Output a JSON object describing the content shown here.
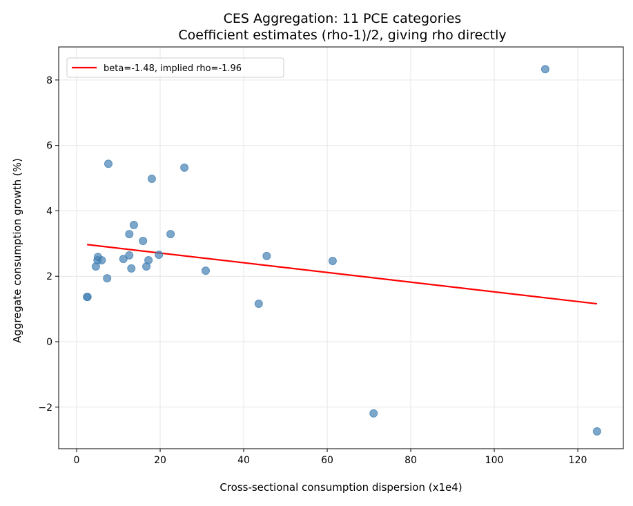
{
  "chart_data": {
    "type": "scatter",
    "title": "CES Aggregation: 11 PCE categories",
    "subtitle": "Coefficient estimates (rho-1)/2, giving rho directly",
    "xlabel": "Cross-sectional consumption dispersion (x1e4)",
    "ylabel": "Aggregate consumption growth (%)",
    "xlim": [
      -4.3,
      130.9
    ],
    "ylim": [
      -3.27,
      9.01
    ],
    "xticks": [
      0,
      20,
      40,
      60,
      80,
      100,
      120
    ],
    "xtick_labels": [
      "0",
      "20",
      "40",
      "60",
      "80",
      "100",
      "120"
    ],
    "yticks": [
      -2,
      0,
      2,
      4,
      6,
      8
    ],
    "ytick_labels": [
      "−2",
      "0",
      "2",
      "4",
      "6",
      "8"
    ],
    "grid": true,
    "legend_placement": "top-left",
    "points": [
      [
        2.5,
        1.37
      ],
      [
        2.6,
        1.37
      ],
      [
        4.6,
        2.3
      ],
      [
        5.1,
        2.59
      ],
      [
        5.0,
        2.49
      ],
      [
        6.0,
        2.49
      ],
      [
        7.3,
        1.94
      ],
      [
        7.6,
        5.44
      ],
      [
        11.2,
        2.53
      ],
      [
        12.6,
        3.29
      ],
      [
        12.6,
        2.64
      ],
      [
        13.1,
        2.24
      ],
      [
        13.7,
        3.57
      ],
      [
        15.9,
        3.08
      ],
      [
        16.7,
        2.3
      ],
      [
        17.2,
        2.49
      ],
      [
        18.0,
        4.98
      ],
      [
        19.7,
        2.66
      ],
      [
        22.5,
        3.29
      ],
      [
        25.8,
        5.32
      ],
      [
        30.9,
        2.17
      ],
      [
        43.6,
        1.16
      ],
      [
        45.5,
        2.62
      ],
      [
        61.3,
        2.47
      ],
      [
        71.1,
        -2.19
      ],
      [
        112.2,
        8.33
      ],
      [
        124.6,
        -2.74
      ]
    ],
    "fit_line": {
      "name": "beta=-1.48, implied rho=-1.96",
      "x": [
        2.5,
        124.6
      ],
      "y": [
        2.97,
        1.16
      ]
    },
    "colors": {
      "points": "#4682b4",
      "fit_line": "#ff0000",
      "grid": "#e6e6e6"
    }
  }
}
